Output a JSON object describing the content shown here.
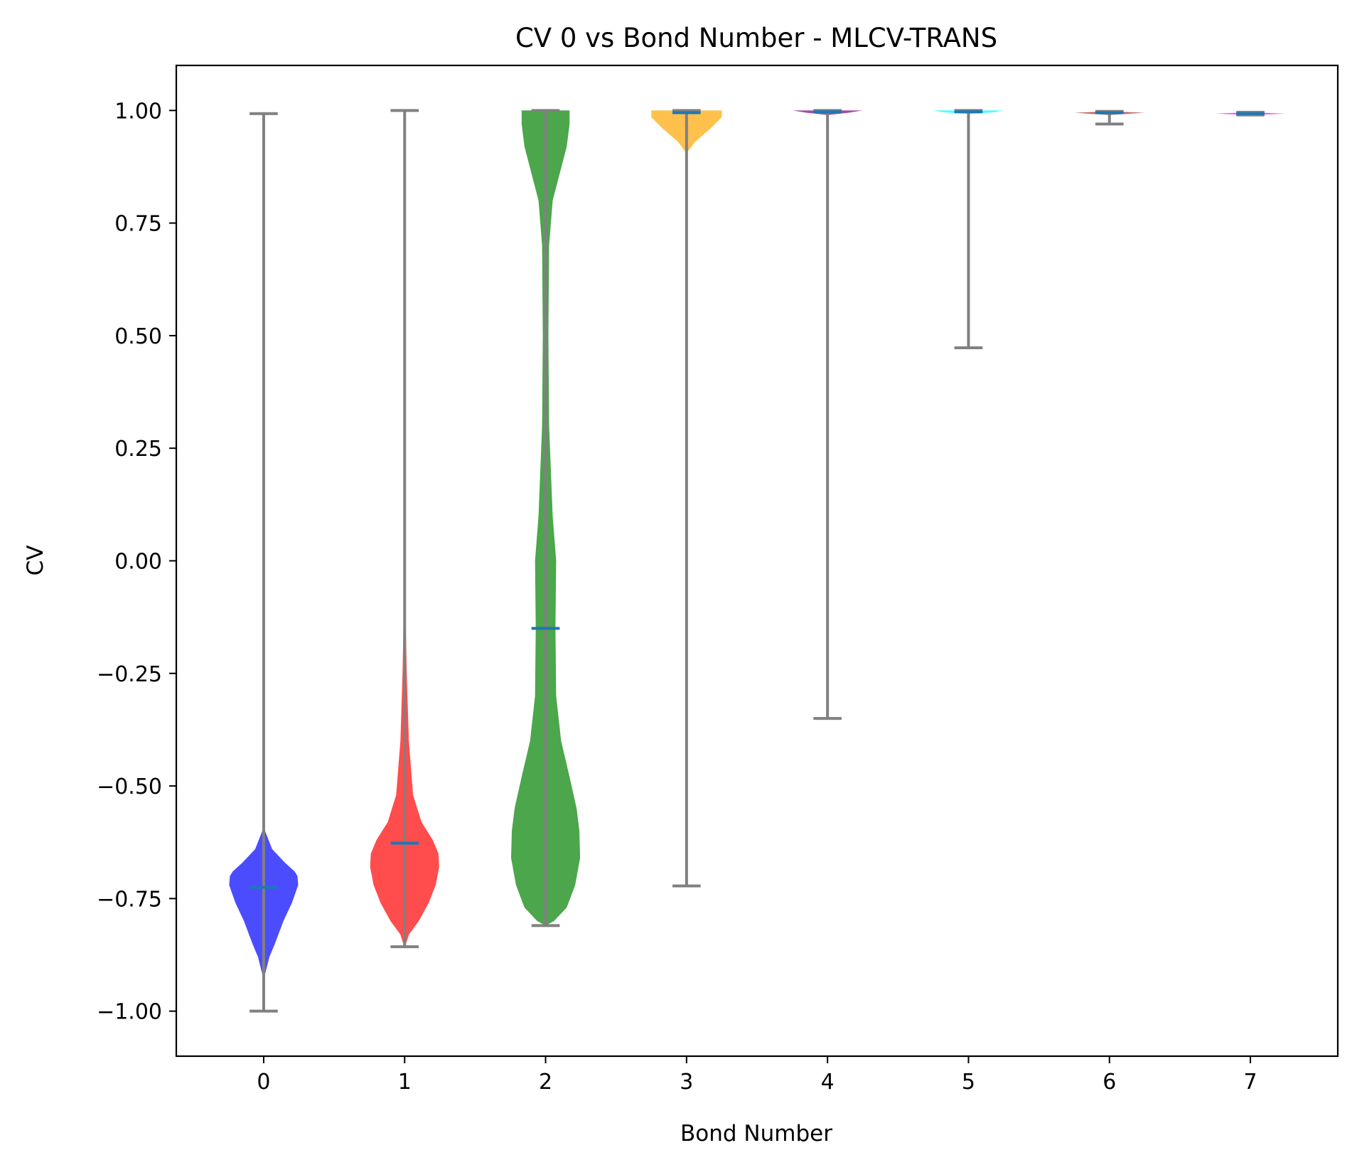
{
  "chart_data": {
    "type": "violin",
    "title": "CV 0 vs Bond Number - MLCV-TRANS",
    "xlabel": "Bond Number",
    "ylabel": "CV",
    "xlim": [
      -0.62,
      7.62
    ],
    "ylim": [
      -1.1,
      1.1
    ],
    "grid": false,
    "x_ticks": [
      "0",
      "1",
      "2",
      "3",
      "4",
      "5",
      "6",
      "7"
    ],
    "y_ticks": [
      {
        "value": 1.0,
        "label": "1.00"
      },
      {
        "value": 0.75,
        "label": "0.75"
      },
      {
        "value": 0.5,
        "label": "0.50"
      },
      {
        "value": 0.25,
        "label": "0.25"
      },
      {
        "value": 0.0,
        "label": "0.00"
      },
      {
        "value": -0.25,
        "label": "−0.25"
      },
      {
        "value": -0.5,
        "label": "−0.50"
      },
      {
        "value": -0.75,
        "label": "−0.75"
      },
      {
        "value": -1.0,
        "label": "−1.00"
      }
    ],
    "whisker_color": "#808080",
    "median_color": "#1f77b4",
    "series": [
      {
        "bond": 0,
        "color": "#0000ff",
        "min": -1.0,
        "max": 0.993,
        "median": -0.725,
        "density": [
          [
            -0.93,
            0.0
          ],
          [
            -0.88,
            0.04
          ],
          [
            -0.85,
            0.08
          ],
          [
            -0.8,
            0.14
          ],
          [
            -0.76,
            0.2
          ],
          [
            -0.72,
            0.245
          ],
          [
            -0.7,
            0.24
          ],
          [
            -0.69,
            0.22
          ],
          [
            -0.67,
            0.15
          ],
          [
            -0.64,
            0.06
          ],
          [
            -0.6,
            0.01
          ],
          [
            -0.57,
            0.0
          ]
        ]
      },
      {
        "bond": 1,
        "color": "#ff0000",
        "min": -0.857,
        "max": 1.0,
        "median": -0.627,
        "density": [
          [
            -0.86,
            0.0
          ],
          [
            -0.83,
            0.03
          ],
          [
            -0.8,
            0.1
          ],
          [
            -0.76,
            0.17
          ],
          [
            -0.72,
            0.22
          ],
          [
            -0.68,
            0.245
          ],
          [
            -0.65,
            0.24
          ],
          [
            -0.62,
            0.2
          ],
          [
            -0.58,
            0.12
          ],
          [
            -0.52,
            0.06
          ],
          [
            -0.4,
            0.03
          ],
          [
            -0.25,
            0.015
          ],
          [
            -0.1,
            0.006
          ],
          [
            0.0,
            0.0
          ]
        ]
      },
      {
        "bond": 2,
        "color": "#008000",
        "min": -0.81,
        "max": 1.0,
        "median": -0.15,
        "density": [
          [
            -0.81,
            0.0
          ],
          [
            -0.8,
            0.06
          ],
          [
            -0.77,
            0.15
          ],
          [
            -0.72,
            0.21
          ],
          [
            -0.66,
            0.245
          ],
          [
            -0.6,
            0.24
          ],
          [
            -0.55,
            0.22
          ],
          [
            -0.48,
            0.17
          ],
          [
            -0.4,
            0.11
          ],
          [
            -0.3,
            0.075
          ],
          [
            -0.15,
            0.07
          ],
          [
            0.0,
            0.075
          ],
          [
            0.1,
            0.05
          ],
          [
            0.3,
            0.025
          ],
          [
            0.5,
            0.02
          ],
          [
            0.7,
            0.025
          ],
          [
            0.8,
            0.05
          ],
          [
            0.86,
            0.1
          ],
          [
            0.92,
            0.15
          ],
          [
            0.97,
            0.17
          ],
          [
            1.0,
            0.17
          ]
        ]
      },
      {
        "bond": 3,
        "color": "#ffa500",
        "min": -0.722,
        "max": 1.0,
        "median": 0.995,
        "density": [
          [
            0.905,
            0.0
          ],
          [
            0.93,
            0.06
          ],
          [
            0.96,
            0.17
          ],
          [
            0.985,
            0.25
          ],
          [
            1.0,
            0.25
          ]
        ]
      },
      {
        "bond": 4,
        "color": "#800080",
        "min": -0.35,
        "max": 1.0,
        "median": 0.997,
        "density": [
          [
            0.99,
            0.0
          ],
          [
            0.995,
            0.15
          ],
          [
            1.0,
            0.25
          ]
        ]
      },
      {
        "bond": 5,
        "color": "#00ffff",
        "min": 0.473,
        "max": 1.0,
        "median": 0.997,
        "density": [
          [
            0.992,
            0.0
          ],
          [
            0.996,
            0.18
          ],
          [
            1.0,
            0.25
          ]
        ]
      },
      {
        "bond": 6,
        "color": "#a52a2a",
        "min": 0.97,
        "max": 0.998,
        "median": 0.995,
        "density": [
          [
            0.99,
            0.0
          ],
          [
            0.995,
            0.25
          ],
          [
            0.998,
            0.0
          ]
        ]
      },
      {
        "bond": 7,
        "color": "#ff00ff",
        "min": 0.99,
        "max": 0.996,
        "median": 0.993,
        "density": [
          [
            0.99,
            0.0
          ],
          [
            0.993,
            0.25
          ],
          [
            0.996,
            0.0
          ]
        ]
      }
    ]
  }
}
